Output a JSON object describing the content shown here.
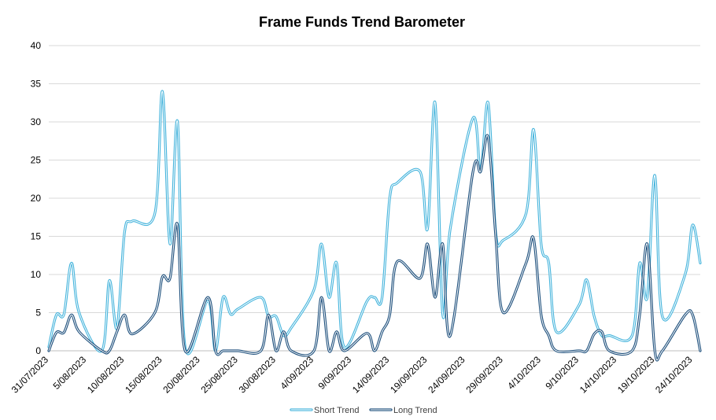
{
  "chart_data": {
    "type": "line",
    "title": "Frame Funds Trend Barometer",
    "xlabel": "",
    "ylabel": "",
    "ylim": [
      0,
      40
    ],
    "yticks": [
      0,
      5,
      10,
      15,
      20,
      25,
      30,
      35,
      40
    ],
    "y_grid": true,
    "legend_position": "bottom",
    "x_tick_labels": [
      "31/07/2023",
      "5/08/2023",
      "10/08/2023",
      "15/08/2023",
      "20/08/2023",
      "25/08/2023",
      "30/08/2023",
      "4/09/2023",
      "9/09/2023",
      "14/09/2023",
      "19/09/2023",
      "24/09/2023",
      "29/09/2023",
      "4/10/2023",
      "9/10/2023",
      "14/10/2023",
      "19/10/2023",
      "24/10/2023"
    ],
    "x": [
      "31/07/2023",
      "1/08/2023",
      "2/08/2023",
      "3/08/2023",
      "4/08/2023",
      "7/08/2023",
      "8/08/2023",
      "9/08/2023",
      "10/08/2023",
      "11/08/2023",
      "14/08/2023",
      "15/08/2023",
      "16/08/2023",
      "17/08/2023",
      "18/08/2023",
      "21/08/2023",
      "22/08/2023",
      "23/08/2023",
      "24/08/2023",
      "25/08/2023",
      "28/08/2023",
      "29/08/2023",
      "30/08/2023",
      "31/08/2023",
      "1/09/2023",
      "4/09/2023",
      "5/09/2023",
      "6/09/2023",
      "7/09/2023",
      "8/09/2023",
      "11/09/2023",
      "12/09/2023",
      "13/09/2023",
      "14/09/2023",
      "15/09/2023",
      "18/09/2023",
      "19/09/2023",
      "20/09/2023",
      "21/09/2023",
      "22/09/2023",
      "25/09/2023",
      "26/09/2023",
      "27/09/2023",
      "28/09/2023",
      "29/09/2023",
      "2/10/2023",
      "3/10/2023",
      "4/10/2023",
      "5/10/2023",
      "6/10/2023",
      "9/10/2023",
      "10/10/2023",
      "11/10/2023",
      "12/10/2023",
      "13/10/2023",
      "16/10/2023",
      "17/10/2023",
      "18/10/2023",
      "19/10/2023",
      "20/10/2023",
      "23/10/2023",
      "24/10/2023",
      "25/10/2023"
    ],
    "series": [
      {
        "name": "Short Trend",
        "color": "#45b4dc",
        "values": [
          0.5,
          4.7,
          4.8,
          11.5,
          5,
          0,
          9.2,
          3,
          15.5,
          17,
          18,
          34,
          14,
          30,
          0.5,
          6.5,
          0,
          7,
          4.8,
          5.5,
          7,
          4.5,
          4.5,
          2,
          3,
          8,
          14,
          7,
          11.5,
          0.5,
          6.5,
          7,
          7,
          20,
          22,
          23.5,
          16,
          32.5,
          4.8,
          16,
          30.5,
          23.5,
          32.5,
          15.5,
          14.5,
          18,
          29,
          14,
          11.5,
          2.5,
          6,
          9.3,
          4.5,
          2,
          2,
          2,
          11.5,
          7,
          23,
          4.5,
          10,
          16.5,
          11.5
        ]
      },
      {
        "name": "Long Trend",
        "color": "#1d4f7c",
        "values": [
          0,
          2.4,
          2.4,
          4.7,
          2.5,
          0,
          0,
          2.5,
          4.7,
          2.2,
          5,
          9.7,
          9.5,
          16.5,
          0,
          7,
          0,
          0,
          0,
          0,
          0,
          4.7,
          0,
          2.5,
          0,
          0,
          7,
          0,
          2.5,
          0,
          2.3,
          0,
          2.5,
          4.7,
          11.7,
          9.5,
          14,
          7,
          14,
          2,
          23.5,
          23.5,
          28,
          15,
          5,
          11.5,
          14.7,
          4.7,
          2,
          0,
          0,
          0,
          2.2,
          2.5,
          0,
          0,
          4.7,
          14,
          0,
          0,
          4.7,
          4.7,
          0
        ]
      }
    ]
  }
}
